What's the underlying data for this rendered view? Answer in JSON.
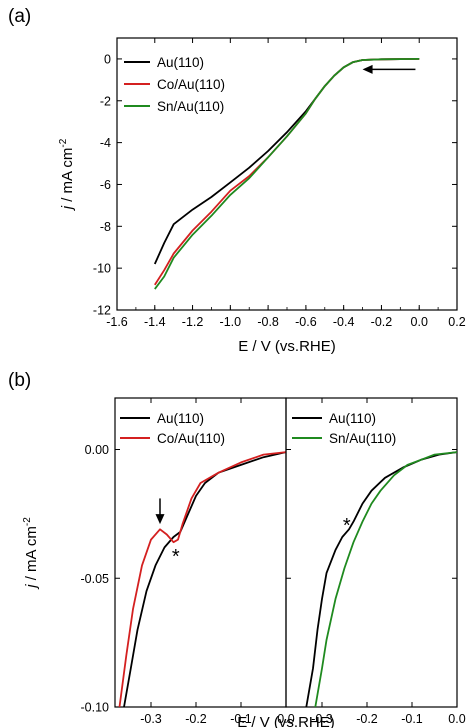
{
  "figure": {
    "panel_a_label": "(a)",
    "panel_b_label": "(b)"
  },
  "colors": {
    "Au(110)": "#000000",
    "Co/Au(110)": "#d42020",
    "Sn/Au(110)": "#1f8a1f"
  },
  "chart_data": [
    {
      "id": "a",
      "type": "line",
      "xlabel": "E / V (vs.RHE)",
      "ylabel": "j / mA cm-2",
      "xlim": [
        -1.6,
        0.2
      ],
      "ylim": [
        -12,
        1
      ],
      "xticks": [
        -1.6,
        -1.4,
        -1.2,
        -1.0,
        -0.8,
        -0.6,
        -0.4,
        -0.2,
        0.0,
        0.2
      ],
      "xtick_labels": [
        "-1.6",
        "-1.4",
        "-1.2",
        "-1.0",
        "-0.8",
        "-0.6",
        "-0.4",
        "-0.2",
        "0.0",
        "0.2"
      ],
      "yticks": [
        0,
        -2,
        -4,
        -6,
        -8,
        -10,
        -12
      ],
      "ytick_labels": [
        "0",
        "-2",
        "-4",
        "-6",
        "-8",
        "-10",
        "-12"
      ],
      "legend": {
        "position": "top-left",
        "entries": [
          "Au(110)",
          "Co/Au(110)",
          "Sn/Au(110)"
        ]
      },
      "annotations": [
        {
          "kind": "arrow",
          "direction": "left",
          "x_from": -0.02,
          "x_to": -0.3,
          "y": -0.5
        }
      ],
      "series": [
        {
          "name": "Au(110)",
          "x": [
            0.0,
            -0.2,
            -0.3,
            -0.35,
            -0.4,
            -0.45,
            -0.5,
            -0.55,
            -0.6,
            -0.7,
            -0.8,
            -0.9,
            -1.0,
            -1.1,
            -1.2,
            -1.3,
            -1.35,
            -1.4
          ],
          "y": [
            0.0,
            -0.02,
            -0.05,
            -0.15,
            -0.4,
            -0.8,
            -1.3,
            -1.9,
            -2.5,
            -3.5,
            -4.4,
            -5.2,
            -5.9,
            -6.6,
            -7.2,
            -7.9,
            -8.8,
            -9.8
          ]
        },
        {
          "name": "Co/Au(110)",
          "x": [
            0.0,
            -0.2,
            -0.3,
            -0.35,
            -0.4,
            -0.45,
            -0.5,
            -0.55,
            -0.6,
            -0.7,
            -0.8,
            -0.9,
            -1.0,
            -1.1,
            -1.2,
            -1.3,
            -1.35,
            -1.4
          ],
          "y": [
            0.0,
            -0.02,
            -0.05,
            -0.15,
            -0.4,
            -0.8,
            -1.3,
            -1.9,
            -2.6,
            -3.7,
            -4.7,
            -5.6,
            -6.3,
            -7.3,
            -8.2,
            -9.3,
            -10.1,
            -10.8
          ]
        },
        {
          "name": "Sn/Au(110)",
          "x": [
            0.0,
            -0.2,
            -0.3,
            -0.35,
            -0.4,
            -0.45,
            -0.5,
            -0.55,
            -0.6,
            -0.7,
            -0.8,
            -0.9,
            -1.0,
            -1.1,
            -1.2,
            -1.3,
            -1.35,
            -1.4
          ],
          "y": [
            0.0,
            -0.02,
            -0.05,
            -0.15,
            -0.4,
            -0.8,
            -1.3,
            -1.9,
            -2.6,
            -3.7,
            -4.7,
            -5.7,
            -6.5,
            -7.5,
            -8.4,
            -9.5,
            -10.4,
            -11.0
          ]
        }
      ]
    },
    {
      "id": "b-left",
      "type": "line",
      "xlabel": "E / V (vs.RHE)",
      "ylabel": "j / mA cm-2",
      "xlim": [
        -0.38,
        0.0
      ],
      "ylim": [
        -0.1,
        0.02
      ],
      "xticks": [
        -0.3,
        -0.2,
        -0.1,
        0.0
      ],
      "xtick_labels": [
        "-0.3",
        "-0.2",
        "-0.1",
        "0.0"
      ],
      "yticks": [
        0.0,
        -0.05,
        -0.1
      ],
      "ytick_labels": [
        "0.00",
        "-0.05",
        "-0.10"
      ],
      "legend": {
        "position": "top-right",
        "entries": [
          "Au(110)",
          "Co/Au(110)"
        ]
      },
      "annotations": [
        {
          "kind": "arrow",
          "direction": "down",
          "x": -0.28,
          "y_from": -0.019,
          "y_to": -0.029
        },
        {
          "kind": "text",
          "text": "*",
          "x": -0.245,
          "y": -0.041
        }
      ],
      "series": [
        {
          "name": "Au(110)",
          "x": [
            -0.36,
            -0.345,
            -0.33,
            -0.31,
            -0.29,
            -0.27,
            -0.25,
            -0.235,
            -0.22,
            -0.2,
            -0.18,
            -0.15,
            -0.1,
            -0.05,
            0.0
          ],
          "y": [
            -0.1,
            -0.085,
            -0.07,
            -0.055,
            -0.045,
            -0.038,
            -0.034,
            -0.032,
            -0.026,
            -0.018,
            -0.013,
            -0.009,
            -0.006,
            -0.003,
            -0.001
          ]
        },
        {
          "name": "Co/Au(110)",
          "x": [
            -0.37,
            -0.355,
            -0.34,
            -0.32,
            -0.3,
            -0.28,
            -0.265,
            -0.25,
            -0.24,
            -0.23,
            -0.21,
            -0.19,
            -0.15,
            -0.1,
            -0.05,
            0.0
          ],
          "y": [
            -0.1,
            -0.08,
            -0.062,
            -0.045,
            -0.035,
            -0.031,
            -0.033,
            -0.036,
            -0.035,
            -0.029,
            -0.019,
            -0.013,
            -0.009,
            -0.005,
            -0.002,
            -0.001
          ]
        }
      ]
    },
    {
      "id": "b-right",
      "type": "line",
      "xlabel": "E / V (vs.RHE)",
      "ylabel": "j / mA cm-2",
      "xlim": [
        -0.38,
        0.0
      ],
      "ylim": [
        -0.1,
        0.02
      ],
      "xticks": [
        -0.3,
        -0.2,
        -0.1,
        0.0
      ],
      "xtick_labels": [
        "-0.3",
        "-0.2",
        "-0.1",
        "0.0"
      ],
      "yticks": [
        0.0,
        -0.05,
        -0.1
      ],
      "legend": {
        "position": "top-right",
        "entries": [
          "Au(110)",
          "Sn/Au(110)"
        ]
      },
      "annotations": [
        {
          "kind": "text",
          "text": "*",
          "x": -0.245,
          "y": -0.029
        }
      ],
      "series": [
        {
          "name": "Au(110)",
          "x": [
            -0.335,
            -0.32,
            -0.31,
            -0.3,
            -0.29,
            -0.27,
            -0.255,
            -0.24,
            -0.23,
            -0.21,
            -0.19,
            -0.16,
            -0.12,
            -0.08,
            -0.04,
            0.0
          ],
          "y": [
            -0.1,
            -0.085,
            -0.07,
            -0.058,
            -0.048,
            -0.039,
            -0.034,
            -0.031,
            -0.028,
            -0.021,
            -0.016,
            -0.011,
            -0.007,
            -0.004,
            -0.002,
            -0.001
          ]
        },
        {
          "name": "Sn/Au(110)",
          "x": [
            -0.315,
            -0.3,
            -0.29,
            -0.27,
            -0.25,
            -0.23,
            -0.21,
            -0.19,
            -0.17,
            -0.14,
            -0.11,
            -0.08,
            -0.05,
            0.0
          ],
          "y": [
            -0.1,
            -0.085,
            -0.074,
            -0.058,
            -0.046,
            -0.036,
            -0.028,
            -0.021,
            -0.016,
            -0.01,
            -0.006,
            -0.004,
            -0.002,
            -0.001
          ]
        }
      ]
    }
  ]
}
